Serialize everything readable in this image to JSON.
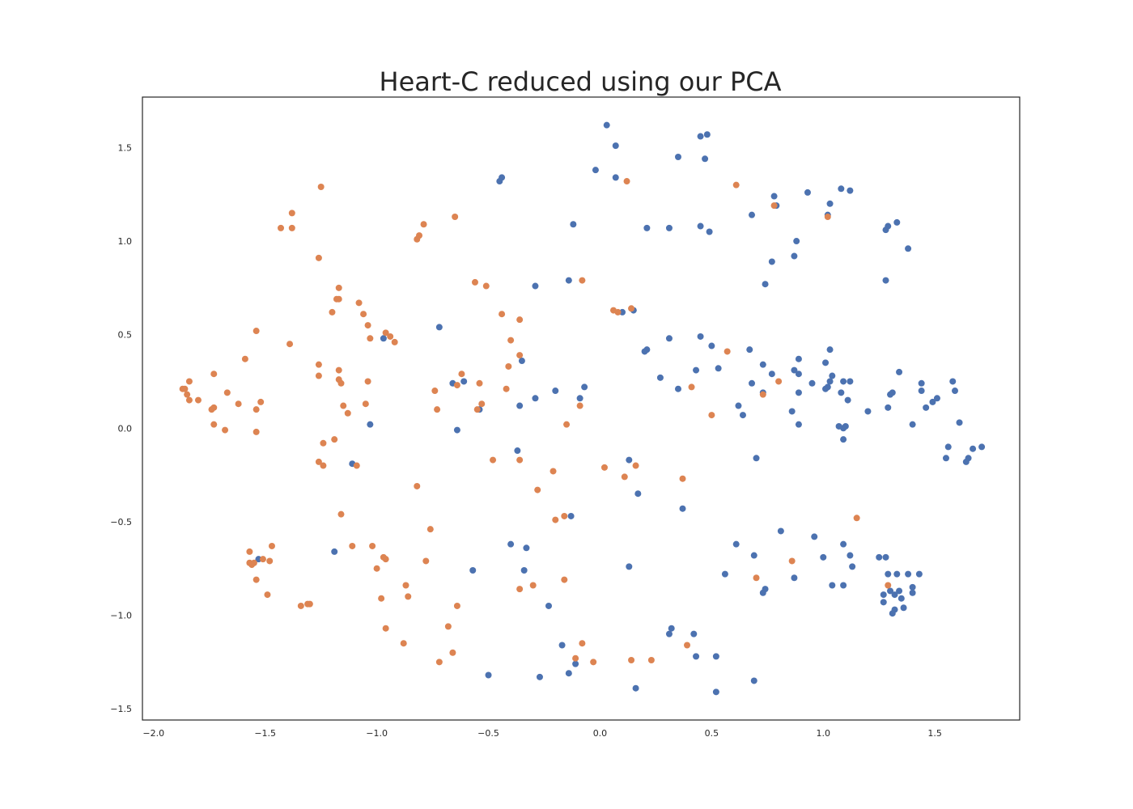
{
  "chart_data": {
    "type": "scatter",
    "title": "Heart-C reduced using our PCA",
    "xlabel": "",
    "ylabel": "",
    "xlim": [
      -2.05,
      1.88
    ],
    "ylim": [
      -1.56,
      1.77
    ],
    "xticks": [
      -2.0,
      -1.5,
      -1.0,
      -0.5,
      0.0,
      0.5,
      1.0,
      1.5
    ],
    "yticks": [
      -1.5,
      -1.0,
      -0.5,
      0.0,
      0.5,
      1.0,
      1.5
    ],
    "xtick_labels": [
      "−2.0",
      "−1.5",
      "−1.0",
      "−0.5",
      "0.0",
      "0.5",
      "1.0",
      "1.5"
    ],
    "ytick_labels": [
      "−1.5",
      "−1.0",
      "−0.5",
      "0.0",
      "0.5",
      "1.0",
      "1.5"
    ],
    "grid": false,
    "legend": "none",
    "series": [
      {
        "color": "#4c72b0",
        "points": [
          [
            0.03,
            1.62
          ],
          [
            0.07,
            1.51
          ],
          [
            0.35,
            1.45
          ],
          [
            0.45,
            1.56
          ],
          [
            0.48,
            1.57
          ],
          [
            0.47,
            1.44
          ],
          [
            -0.02,
            1.38
          ],
          [
            0.07,
            1.34
          ],
          [
            -0.45,
            1.32
          ],
          [
            -0.44,
            1.34
          ],
          [
            -0.12,
            1.09
          ],
          [
            0.21,
            1.07
          ],
          [
            0.31,
            1.07
          ],
          [
            0.45,
            1.08
          ],
          [
            0.49,
            1.05
          ],
          [
            0.68,
            1.14
          ],
          [
            0.78,
            1.24
          ],
          [
            0.79,
            1.19
          ],
          [
            0.77,
            0.89
          ],
          [
            0.88,
            1.0
          ],
          [
            0.87,
            0.92
          ],
          [
            0.93,
            1.26
          ],
          [
            1.03,
            1.2
          ],
          [
            1.02,
            1.14
          ],
          [
            1.08,
            1.28
          ],
          [
            1.12,
            1.27
          ],
          [
            1.28,
            1.06
          ],
          [
            1.29,
            1.08
          ],
          [
            1.33,
            1.1
          ],
          [
            1.38,
            0.96
          ],
          [
            1.28,
            0.79
          ],
          [
            0.74,
            0.77
          ],
          [
            -0.29,
            0.76
          ],
          [
            -0.14,
            0.79
          ],
          [
            0.1,
            0.62
          ],
          [
            0.15,
            0.63
          ],
          [
            -0.72,
            0.54
          ],
          [
            -0.97,
            0.48
          ],
          [
            0.31,
            0.48
          ],
          [
            0.45,
            0.49
          ],
          [
            0.5,
            0.44
          ],
          [
            0.21,
            0.42
          ],
          [
            0.2,
            0.41
          ],
          [
            0.67,
            0.42
          ],
          [
            0.73,
            0.34
          ],
          [
            0.89,
            0.37
          ],
          [
            1.03,
            0.42
          ],
          [
            1.01,
            0.35
          ],
          [
            0.27,
            0.27
          ],
          [
            0.43,
            0.31
          ],
          [
            0.35,
            0.21
          ],
          [
            0.53,
            0.32
          ],
          [
            0.68,
            0.24
          ],
          [
            0.77,
            0.29
          ],
          [
            0.87,
            0.31
          ],
          [
            0.89,
            0.29
          ],
          [
            0.95,
            0.24
          ],
          [
            1.01,
            0.21
          ],
          [
            1.02,
            0.22
          ],
          [
            1.04,
            0.28
          ],
          [
            1.03,
            0.25
          ],
          [
            1.08,
            0.19
          ],
          [
            1.09,
            0.25
          ],
          [
            1.12,
            0.25
          ],
          [
            1.11,
            0.15
          ],
          [
            0.73,
            0.19
          ],
          [
            0.89,
            0.19
          ],
          [
            0.62,
            0.12
          ],
          [
            0.64,
            0.07
          ],
          [
            0.86,
            0.09
          ],
          [
            0.89,
            0.02
          ],
          [
            1.07,
            0.01
          ],
          [
            1.09,
            0.0
          ],
          [
            1.1,
            0.01
          ],
          [
            1.09,
            -0.06
          ],
          [
            1.2,
            0.09
          ],
          [
            1.3,
            0.18
          ],
          [
            1.31,
            0.19
          ],
          [
            1.34,
            0.3
          ],
          [
            1.29,
            0.11
          ],
          [
            1.4,
            0.02
          ],
          [
            1.44,
            0.24
          ],
          [
            1.44,
            0.2
          ],
          [
            1.46,
            0.11
          ],
          [
            1.49,
            0.14
          ],
          [
            1.51,
            0.16
          ],
          [
            1.58,
            0.25
          ],
          [
            1.59,
            0.2
          ],
          [
            1.61,
            0.03
          ],
          [
            1.56,
            -0.1
          ],
          [
            1.55,
            -0.16
          ],
          [
            1.64,
            -0.18
          ],
          [
            1.65,
            -0.16
          ],
          [
            1.67,
            -0.11
          ],
          [
            1.71,
            -0.1
          ],
          [
            -0.66,
            0.24
          ],
          [
            -0.61,
            0.25
          ],
          [
            -0.54,
            0.1
          ],
          [
            -0.36,
            0.12
          ],
          [
            -0.29,
            0.16
          ],
          [
            -0.2,
            0.2
          ],
          [
            -0.35,
            0.36
          ],
          [
            -0.09,
            0.16
          ],
          [
            -0.07,
            0.22
          ],
          [
            -1.03,
            0.02
          ],
          [
            -0.64,
            -0.01
          ],
          [
            -1.11,
            -0.19
          ],
          [
            -0.37,
            -0.12
          ],
          [
            0.13,
            -0.17
          ],
          [
            0.17,
            -0.35
          ],
          [
            0.37,
            -0.43
          ],
          [
            0.7,
            -0.16
          ],
          [
            -0.13,
            -0.47
          ],
          [
            -0.4,
            -0.62
          ],
          [
            -0.33,
            -0.64
          ],
          [
            -0.34,
            -0.76
          ],
          [
            -0.57,
            -0.76
          ],
          [
            -1.19,
            -0.66
          ],
          [
            -1.53,
            -0.7
          ],
          [
            0.13,
            -0.74
          ],
          [
            0.61,
            -0.62
          ],
          [
            0.69,
            -0.68
          ],
          [
            0.56,
            -0.78
          ],
          [
            0.81,
            -0.55
          ],
          [
            0.73,
            -0.88
          ],
          [
            0.74,
            -0.86
          ],
          [
            0.87,
            -0.8
          ],
          [
            0.96,
            -0.58
          ],
          [
            1.0,
            -0.69
          ],
          [
            1.04,
            -0.84
          ],
          [
            1.09,
            -0.62
          ],
          [
            1.09,
            -0.84
          ],
          [
            1.12,
            -0.68
          ],
          [
            1.13,
            -0.74
          ],
          [
            1.25,
            -0.69
          ],
          [
            1.28,
            -0.69
          ],
          [
            1.29,
            -0.78
          ],
          [
            1.27,
            -0.89
          ],
          [
            1.27,
            -0.93
          ],
          [
            1.3,
            -0.87
          ],
          [
            1.32,
            -0.89
          ],
          [
            1.31,
            -0.99
          ],
          [
            1.32,
            -0.97
          ],
          [
            1.33,
            -0.78
          ],
          [
            1.34,
            -0.87
          ],
          [
            1.35,
            -0.91
          ],
          [
            1.36,
            -0.96
          ],
          [
            1.38,
            -0.78
          ],
          [
            1.4,
            -0.85
          ],
          [
            1.4,
            -0.88
          ],
          [
            1.43,
            -0.78
          ],
          [
            -0.23,
            -0.95
          ],
          [
            0.32,
            -1.07
          ],
          [
            0.31,
            -1.1
          ],
          [
            0.42,
            -1.1
          ],
          [
            0.43,
            -1.22
          ],
          [
            0.52,
            -1.22
          ],
          [
            -0.17,
            -1.16
          ],
          [
            -0.11,
            -1.26
          ],
          [
            -0.14,
            -1.31
          ],
          [
            -0.27,
            -1.33
          ],
          [
            -0.5,
            -1.32
          ],
          [
            0.16,
            -1.39
          ],
          [
            0.52,
            -1.41
          ],
          [
            0.69,
            -1.35
          ]
        ]
      },
      {
        "color": "#dd8452",
        "points": [
          [
            -1.25,
            1.29
          ],
          [
            -1.43,
            1.07
          ],
          [
            -1.38,
            1.07
          ],
          [
            -1.38,
            1.15
          ],
          [
            -0.82,
            1.01
          ],
          [
            -0.81,
            1.03
          ],
          [
            -0.79,
            1.09
          ],
          [
            -0.65,
            1.13
          ],
          [
            -1.26,
            0.91
          ],
          [
            0.12,
            1.32
          ],
          [
            0.61,
            1.3
          ],
          [
            0.78,
            1.19
          ],
          [
            1.02,
            1.13
          ],
          [
            -0.56,
            0.78
          ],
          [
            -0.51,
            0.76
          ],
          [
            -0.08,
            0.79
          ],
          [
            -1.17,
            0.75
          ],
          [
            -1.18,
            0.69
          ],
          [
            -1.17,
            0.69
          ],
          [
            -1.2,
            0.62
          ],
          [
            -1.08,
            0.67
          ],
          [
            -1.06,
            0.61
          ],
          [
            -1.04,
            0.55
          ],
          [
            -1.03,
            0.48
          ],
          [
            -0.96,
            0.51
          ],
          [
            -0.94,
            0.49
          ],
          [
            -0.92,
            0.46
          ],
          [
            -0.44,
            0.61
          ],
          [
            -0.36,
            0.58
          ],
          [
            -0.4,
            0.47
          ],
          [
            -0.36,
            0.39
          ],
          [
            -0.41,
            0.33
          ],
          [
            -1.54,
            0.52
          ],
          [
            -1.39,
            0.45
          ],
          [
            -1.59,
            0.37
          ],
          [
            -0.42,
            0.21
          ],
          [
            0.06,
            0.63
          ],
          [
            0.08,
            0.62
          ],
          [
            0.14,
            0.64
          ],
          [
            0.57,
            0.41
          ],
          [
            -1.26,
            0.34
          ],
          [
            -1.26,
            0.28
          ],
          [
            -1.17,
            0.31
          ],
          [
            -1.17,
            0.26
          ],
          [
            -1.16,
            0.24
          ],
          [
            -1.04,
            0.25
          ],
          [
            -1.87,
            0.21
          ],
          [
            -1.86,
            0.21
          ],
          [
            -1.85,
            0.18
          ],
          [
            -1.84,
            0.25
          ],
          [
            -1.84,
            0.15
          ],
          [
            -1.8,
            0.15
          ],
          [
            -1.73,
            0.29
          ],
          [
            -1.73,
            0.11
          ],
          [
            -1.74,
            0.1
          ],
          [
            -1.67,
            0.19
          ],
          [
            -1.62,
            0.13
          ],
          [
            -1.54,
            0.1
          ],
          [
            -1.52,
            0.14
          ],
          [
            -1.73,
            0.02
          ],
          [
            -1.68,
            -0.01
          ],
          [
            -1.54,
            -0.02
          ],
          [
            -1.15,
            0.12
          ],
          [
            -1.13,
            0.08
          ],
          [
            -1.05,
            0.13
          ],
          [
            -0.74,
            0.2
          ],
          [
            -0.73,
            0.1
          ],
          [
            -0.62,
            0.29
          ],
          [
            -0.64,
            0.23
          ],
          [
            -0.54,
            0.24
          ],
          [
            -0.53,
            0.13
          ],
          [
            -0.55,
            0.1
          ],
          [
            -0.15,
            0.02
          ],
          [
            -0.09,
            0.12
          ],
          [
            0.41,
            0.22
          ],
          [
            0.5,
            0.07
          ],
          [
            0.73,
            0.18
          ],
          [
            0.8,
            0.25
          ],
          [
            -1.24,
            -0.08
          ],
          [
            -1.19,
            -0.06
          ],
          [
            -1.26,
            -0.18
          ],
          [
            -1.24,
            -0.2
          ],
          [
            -1.09,
            -0.2
          ],
          [
            -0.48,
            -0.17
          ],
          [
            -0.36,
            -0.17
          ],
          [
            -0.21,
            -0.23
          ],
          [
            0.02,
            -0.21
          ],
          [
            0.11,
            -0.26
          ],
          [
            0.16,
            -0.2
          ],
          [
            0.37,
            -0.27
          ],
          [
            -0.82,
            -0.31
          ],
          [
            -0.28,
            -0.33
          ],
          [
            -1.16,
            -0.46
          ],
          [
            -0.76,
            -0.54
          ],
          [
            -0.2,
            -0.49
          ],
          [
            -0.16,
            -0.47
          ],
          [
            1.15,
            -0.48
          ],
          [
            -1.57,
            -0.66
          ],
          [
            -1.57,
            -0.72
          ],
          [
            -1.56,
            -0.73
          ],
          [
            -1.55,
            -0.72
          ],
          [
            -1.51,
            -0.7
          ],
          [
            -1.48,
            -0.71
          ],
          [
            -1.47,
            -0.63
          ],
          [
            -1.54,
            -0.81
          ],
          [
            -1.49,
            -0.89
          ],
          [
            -1.11,
            -0.63
          ],
          [
            -1.02,
            -0.63
          ],
          [
            -0.97,
            -0.69
          ],
          [
            -0.96,
            -0.7
          ],
          [
            -1.0,
            -0.75
          ],
          [
            -0.78,
            -0.71
          ],
          [
            -0.87,
            -0.84
          ],
          [
            -0.86,
            -0.9
          ],
          [
            -0.98,
            -0.91
          ],
          [
            -0.36,
            -0.86
          ],
          [
            -0.3,
            -0.84
          ],
          [
            -0.16,
            -0.81
          ],
          [
            0.7,
            -0.8
          ],
          [
            0.86,
            -0.71
          ],
          [
            1.29,
            -0.84
          ],
          [
            -1.34,
            -0.95
          ],
          [
            -1.31,
            -0.94
          ],
          [
            -1.3,
            -0.94
          ],
          [
            -0.96,
            -1.07
          ],
          [
            -0.88,
            -1.15
          ],
          [
            -0.68,
            -1.06
          ],
          [
            -0.64,
            -0.95
          ],
          [
            -0.72,
            -1.25
          ],
          [
            -0.66,
            -1.2
          ],
          [
            -0.11,
            -1.23
          ],
          [
            -0.08,
            -1.15
          ],
          [
            -0.03,
            -1.25
          ],
          [
            0.14,
            -1.24
          ],
          [
            0.23,
            -1.24
          ],
          [
            0.39,
            -1.16
          ]
        ]
      }
    ]
  }
}
